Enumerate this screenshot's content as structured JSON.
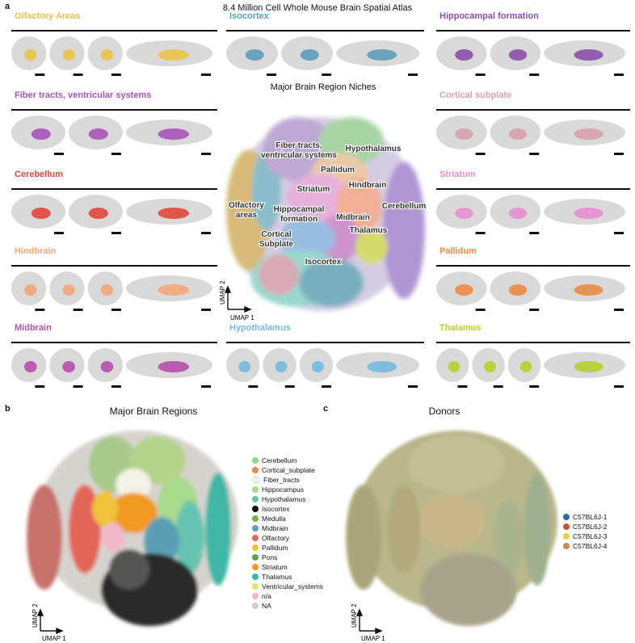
{
  "panel_a": {
    "letter": "a",
    "title": "8.4 Million Cell Whole Mouse Brain Spatial Atlas",
    "center_title": "Major Brain Region Niches",
    "umap_x": "UMAP 1",
    "umap_y": "UMAP 2",
    "regions": [
      {
        "key": "olfactory",
        "title": "Olfactory Areas",
        "color": "#e9c24a"
      },
      {
        "key": "isocortex",
        "title": "Isocortex",
        "color": "#5d9cb6"
      },
      {
        "key": "hippocampal",
        "title": "Hippocampal formation",
        "color": "#8b4fa8"
      },
      {
        "key": "fiber",
        "title": "Fiber tracts, ventricular systems",
        "color": "#a653b9"
      },
      {
        "key": "subplate",
        "title": "Cortical subplate",
        "color": "#d79fae"
      },
      {
        "key": "cerebellum",
        "title": "Cerebellum",
        "color": "#e0473c"
      },
      {
        "key": "striatum",
        "title": "Striatum",
        "color": "#e58ed0"
      },
      {
        "key": "hindbrain",
        "title": "Hindbrain",
        "color": "#f1a678"
      },
      {
        "key": "pallidum",
        "title": "Pallidum",
        "color": "#ea8a45"
      },
      {
        "key": "midbrain",
        "title": "Midbrain",
        "color": "#b54ca8"
      },
      {
        "key": "hypothalamus",
        "title": "Hypothalamus",
        "color": "#74b8de"
      },
      {
        "key": "thalamus",
        "title": "Thalamus",
        "color": "#b8cd2b"
      }
    ],
    "niche_labels": [
      "Fiber tracts,",
      "ventricular systems",
      "Hypothalamus",
      "Pallidum",
      "Striatum",
      "Hindbrain",
      "Olfactory",
      "areas",
      "Hippocampal",
      "formation",
      "Cerebellum",
      "Midbrain",
      "Thalamus",
      "Cortical",
      "Subplate",
      "Isocortex"
    ]
  },
  "panel_b": {
    "letter": "b",
    "title": "Major Brain Regions",
    "umap_x": "UMAP 1",
    "umap_y": "UMAP 2",
    "legend": [
      {
        "label": "Cerebellum",
        "color": "#8fd39a"
      },
      {
        "label": "Cortical_subplate",
        "color": "#ef8a3c"
      },
      {
        "label": "Fiber_tracts",
        "color": "#f4f1e8"
      },
      {
        "label": "Hippocampus",
        "color": "#a9d98b"
      },
      {
        "label": "Hypothalamus",
        "color": "#66c2b1"
      },
      {
        "label": "Isocortex",
        "color": "#111111"
      },
      {
        "label": "Medulla",
        "color": "#7fae4c"
      },
      {
        "label": "Midbrain",
        "color": "#5b9fb5"
      },
      {
        "label": "Olfactory",
        "color": "#e36558"
      },
      {
        "label": "Pallidum",
        "color": "#f0c23a"
      },
      {
        "label": "Pons",
        "color": "#67a346"
      },
      {
        "label": "Striatum",
        "color": "#f09a24"
      },
      {
        "label": "Thalamus",
        "color": "#40b6a6"
      },
      {
        "label": "Ventricular_systems",
        "color": "#e3e36b"
      },
      {
        "label": "n/a",
        "color": "#f2b8c9"
      },
      {
        "label": "NA",
        "color": "#cfcfcf"
      }
    ]
  },
  "panel_c": {
    "letter": "c",
    "title": "Donors",
    "umap_x": "UMAP 1",
    "umap_y": "UMAP 2",
    "legend": [
      {
        "label": "C57BL6J-1",
        "color": "#2a6db1"
      },
      {
        "label": "C57BL6J-2",
        "color": "#d2512b"
      },
      {
        "label": "C57BL6J-3",
        "color": "#e5d53a"
      },
      {
        "label": "C57BL6J-4",
        "color": "#d08a4a"
      }
    ]
  }
}
